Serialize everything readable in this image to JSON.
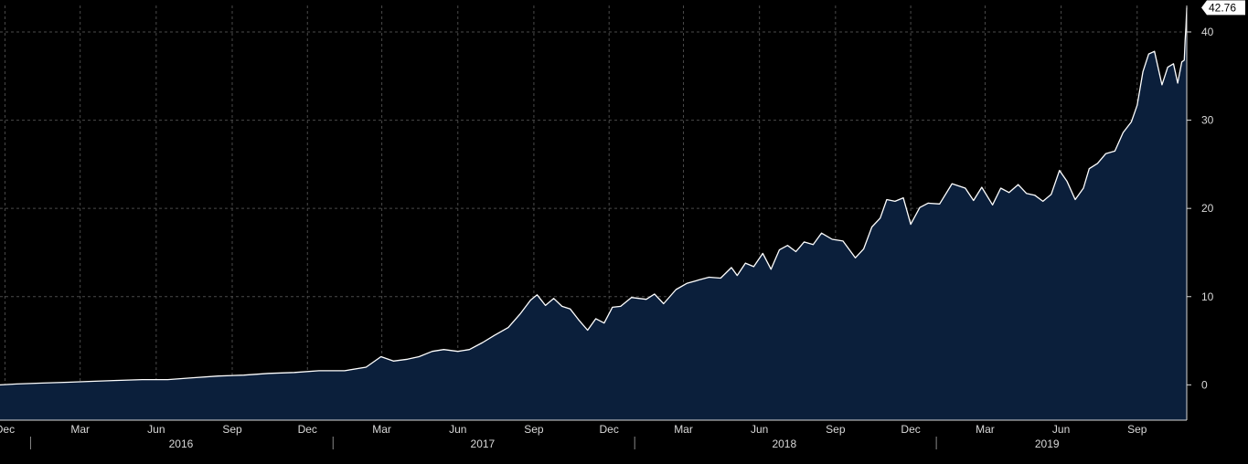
{
  "chart_data": {
    "type": "area",
    "colors": {
      "background": "#000000",
      "fill": "#0b1f3b",
      "line": "#ffffff",
      "grid": "#4a4a4a",
      "text": "#d8d8d8"
    },
    "grid": true,
    "y_axis_side": "right",
    "ylim": [
      -4,
      43
    ],
    "yticks": [
      "0",
      "10",
      "20",
      "30",
      "40"
    ],
    "xlim": [
      "2015-11-25",
      "2019-10-31"
    ],
    "month_ticks": [
      {
        "label": "Dec",
        "date": "2015-12-01"
      },
      {
        "label": "Mar",
        "date": "2016-03-01"
      },
      {
        "label": "Jun",
        "date": "2016-06-01"
      },
      {
        "label": "Sep",
        "date": "2016-09-01"
      },
      {
        "label": "Dec",
        "date": "2016-12-01"
      },
      {
        "label": "Mar",
        "date": "2017-03-01"
      },
      {
        "label": "Jun",
        "date": "2017-06-01"
      },
      {
        "label": "Sep",
        "date": "2017-09-01"
      },
      {
        "label": "Dec",
        "date": "2017-12-01"
      },
      {
        "label": "Mar",
        "date": "2018-03-01"
      },
      {
        "label": "Jun",
        "date": "2018-06-01"
      },
      {
        "label": "Sep",
        "date": "2018-09-01"
      },
      {
        "label": "Dec",
        "date": "2018-12-01"
      },
      {
        "label": "Mar",
        "date": "2019-03-01"
      },
      {
        "label": "Jun",
        "date": "2019-06-01"
      },
      {
        "label": "Sep",
        "date": "2019-09-01"
      }
    ],
    "year_labels": [
      {
        "label": "2016",
        "date": "2016-07-01"
      },
      {
        "label": "2017",
        "date": "2017-07-01"
      },
      {
        "label": "2018",
        "date": "2018-07-01"
      },
      {
        "label": "2019",
        "date": "2019-05-15"
      }
    ],
    "last_value_label": "42.76",
    "series": [
      {
        "values": [
          [
            "2015-11-25",
            0.0
          ],
          [
            "2015-12-15",
            0.1
          ],
          [
            "2016-01-15",
            0.2
          ],
          [
            "2016-02-15",
            0.3
          ],
          [
            "2016-03-15",
            0.4
          ],
          [
            "2016-04-15",
            0.5
          ],
          [
            "2016-05-15",
            0.6
          ],
          [
            "2016-06-15",
            0.6
          ],
          [
            "2016-07-15",
            0.8
          ],
          [
            "2016-08-15",
            1.0
          ],
          [
            "2016-09-15",
            1.1
          ],
          [
            "2016-10-15",
            1.3
          ],
          [
            "2016-11-15",
            1.4
          ],
          [
            "2016-12-15",
            1.6
          ],
          [
            "2017-01-15",
            1.6
          ],
          [
            "2017-02-10",
            2.0
          ],
          [
            "2017-02-28",
            3.2
          ],
          [
            "2017-03-15",
            2.7
          ],
          [
            "2017-04-01",
            2.9
          ],
          [
            "2017-04-15",
            3.2
          ],
          [
            "2017-05-01",
            3.8
          ],
          [
            "2017-05-15",
            4.0
          ],
          [
            "2017-06-01",
            3.8
          ],
          [
            "2017-06-15",
            4.0
          ],
          [
            "2017-07-01",
            4.8
          ],
          [
            "2017-07-15",
            5.6
          ],
          [
            "2017-08-01",
            6.5
          ],
          [
            "2017-08-15",
            8.0
          ],
          [
            "2017-08-28",
            9.6
          ],
          [
            "2017-09-05",
            10.2
          ],
          [
            "2017-09-15",
            9.0
          ],
          [
            "2017-09-25",
            9.8
          ],
          [
            "2017-10-05",
            8.9
          ],
          [
            "2017-10-15",
            8.6
          ],
          [
            "2017-10-25",
            7.4
          ],
          [
            "2017-11-05",
            6.2
          ],
          [
            "2017-11-15",
            7.5
          ],
          [
            "2017-11-25",
            7.0
          ],
          [
            "2017-12-05",
            8.8
          ],
          [
            "2017-12-15",
            8.9
          ],
          [
            "2017-12-28",
            9.9
          ],
          [
            "2018-01-15",
            9.7
          ],
          [
            "2018-01-25",
            10.3
          ],
          [
            "2018-02-05",
            9.2
          ],
          [
            "2018-02-20",
            10.8
          ],
          [
            "2018-03-05",
            11.5
          ],
          [
            "2018-03-20",
            11.9
          ],
          [
            "2018-04-01",
            12.2
          ],
          [
            "2018-04-15",
            12.1
          ],
          [
            "2018-04-28",
            13.3
          ],
          [
            "2018-05-05",
            12.4
          ],
          [
            "2018-05-15",
            13.8
          ],
          [
            "2018-05-25",
            13.4
          ],
          [
            "2018-06-05",
            14.9
          ],
          [
            "2018-06-15",
            13.1
          ],
          [
            "2018-06-25",
            15.3
          ],
          [
            "2018-07-05",
            15.8
          ],
          [
            "2018-07-15",
            15.1
          ],
          [
            "2018-07-25",
            16.2
          ],
          [
            "2018-08-05",
            15.9
          ],
          [
            "2018-08-15",
            17.2
          ],
          [
            "2018-08-28",
            16.5
          ],
          [
            "2018-09-10",
            16.3
          ],
          [
            "2018-09-25",
            14.4
          ],
          [
            "2018-10-05",
            15.4
          ],
          [
            "2018-10-15",
            17.9
          ],
          [
            "2018-10-25",
            18.9
          ],
          [
            "2018-11-02",
            21.0
          ],
          [
            "2018-11-12",
            20.8
          ],
          [
            "2018-11-22",
            21.2
          ],
          [
            "2018-12-01",
            18.2
          ],
          [
            "2018-12-12",
            20.1
          ],
          [
            "2018-12-22",
            20.6
          ],
          [
            "2019-01-05",
            20.5
          ],
          [
            "2019-01-20",
            22.8
          ],
          [
            "2019-02-05",
            22.3
          ],
          [
            "2019-02-15",
            20.9
          ],
          [
            "2019-02-25",
            22.4
          ],
          [
            "2019-03-10",
            20.4
          ],
          [
            "2019-03-20",
            22.3
          ],
          [
            "2019-03-30",
            21.8
          ],
          [
            "2019-04-10",
            22.7
          ],
          [
            "2019-04-20",
            21.7
          ],
          [
            "2019-04-30",
            21.5
          ],
          [
            "2019-05-10",
            20.8
          ],
          [
            "2019-05-20",
            21.6
          ],
          [
            "2019-05-30",
            24.3
          ],
          [
            "2019-06-08",
            23.1
          ],
          [
            "2019-06-18",
            21.0
          ],
          [
            "2019-06-28",
            22.3
          ],
          [
            "2019-07-05",
            24.5
          ],
          [
            "2019-07-15",
            25.1
          ],
          [
            "2019-07-25",
            26.2
          ],
          [
            "2019-08-05",
            26.5
          ],
          [
            "2019-08-15",
            28.6
          ],
          [
            "2019-08-25",
            29.8
          ],
          [
            "2019-09-01",
            31.7
          ],
          [
            "2019-09-08",
            35.5
          ],
          [
            "2019-09-15",
            37.5
          ],
          [
            "2019-09-22",
            37.8
          ],
          [
            "2019-10-01",
            34.0
          ],
          [
            "2019-10-08",
            36.0
          ],
          [
            "2019-10-15",
            36.4
          ],
          [
            "2019-10-20",
            34.2
          ],
          [
            "2019-10-25",
            36.6
          ],
          [
            "2019-10-28",
            36.8
          ],
          [
            "2019-10-29",
            39.0
          ],
          [
            "2019-10-30",
            40.5
          ],
          [
            "2019-10-31",
            42.76
          ]
        ]
      }
    ]
  }
}
